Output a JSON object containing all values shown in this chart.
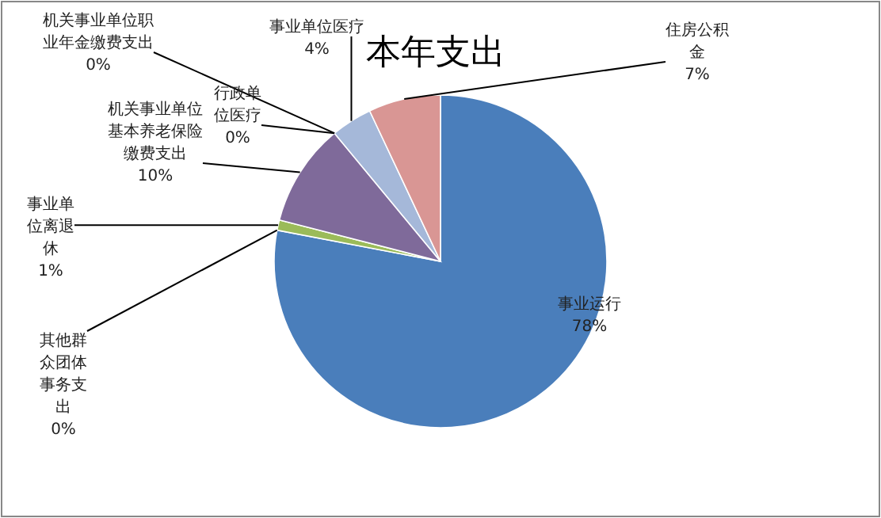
{
  "chart_data": {
    "type": "pie",
    "title": "本年支出",
    "categories": [
      "事业运行",
      "其他群众团体事务支出",
      "事业单位离退休",
      "机关事业单位基本养老保险缴费支出",
      "机关事业单位职业年金缴费支出",
      "行政单位医疗",
      "事业单位医疗",
      "住房公积金"
    ],
    "values": [
      78,
      0,
      1,
      10,
      0,
      0,
      4,
      7
    ],
    "value_labels": [
      "78%",
      "0%",
      "1%",
      "10%",
      "0%",
      "0%",
      "4%",
      "7%"
    ],
    "colors": [
      "#4a7ebb",
      null,
      "#9bbb59",
      "#7f6a9a",
      null,
      null,
      "#a5b8d9",
      "#d99694"
    ],
    "legend": false
  }
}
